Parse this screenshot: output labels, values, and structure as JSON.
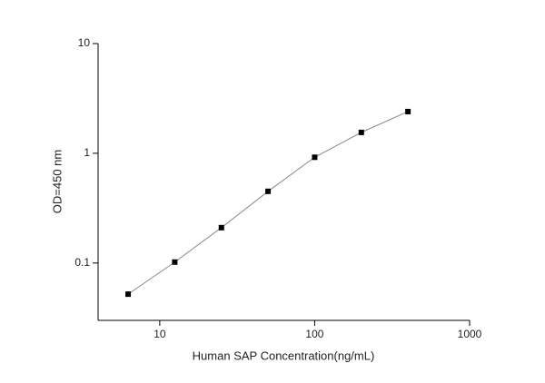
{
  "chart_data": {
    "type": "line",
    "x_label": "Human SAP Concentration(ng/mL)",
    "y_label": "OD=450 nm",
    "x": [
      6.25,
      12.5,
      25,
      50,
      100,
      200,
      400
    ],
    "series": [
      {
        "color": "#000000",
        "line_color": "#888888",
        "values": [
          0.052,
          0.102,
          0.21,
          0.45,
          0.92,
          1.55,
          2.4
        ]
      }
    ],
    "xscale": "log",
    "yscale": "log",
    "xlim": [
      4,
      1000
    ],
    "ylim": [
      0.03,
      10
    ],
    "xticks": [
      10,
      100,
      1000
    ],
    "yticks": [
      0.1,
      1,
      10
    ],
    "grid": false
  }
}
